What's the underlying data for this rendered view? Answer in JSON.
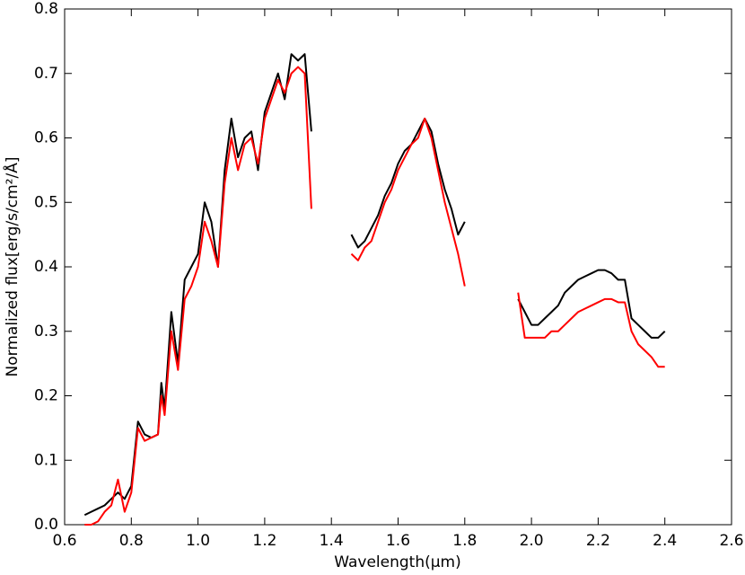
{
  "chart_data": {
    "type": "line",
    "x_label": "Wavelength(μm)",
    "y_label": "Normalized flux[erg/s/cm²/Å]",
    "x": [
      0.66,
      0.68,
      0.7,
      0.72,
      0.74,
      0.76,
      0.78,
      0.8,
      0.82,
      0.84,
      0.86,
      0.88,
      0.89,
      0.9,
      0.92,
      0.94,
      0.96,
      0.98,
      1.0,
      1.02,
      1.04,
      1.06,
      1.08,
      1.1,
      1.12,
      1.14,
      1.16,
      1.18,
      1.2,
      1.22,
      1.24,
      1.26,
      1.28,
      1.3,
      1.32,
      1.34,
      1.4,
      1.46,
      1.48,
      1.5,
      1.52,
      1.54,
      1.56,
      1.58,
      1.6,
      1.62,
      1.64,
      1.66,
      1.68,
      1.7,
      1.72,
      1.74,
      1.76,
      1.78,
      1.8,
      1.88,
      1.96,
      1.98,
      2.0,
      2.02,
      2.04,
      2.06,
      2.08,
      2.1,
      2.12,
      2.14,
      2.16,
      2.18,
      2.2,
      2.22,
      2.24,
      2.26,
      2.28,
      2.3,
      2.32,
      2.34,
      2.36,
      2.38,
      2.4
    ],
    "series": [
      {
        "color": "#000000",
        "values": [
          0.015,
          0.02,
          0.025,
          0.03,
          0.04,
          0.05,
          0.04,
          0.06,
          0.16,
          0.14,
          0.135,
          0.14,
          0.22,
          0.18,
          0.33,
          0.25,
          0.38,
          0.4,
          0.42,
          0.5,
          0.47,
          0.4,
          0.55,
          0.63,
          0.57,
          0.6,
          0.61,
          0.55,
          0.64,
          0.67,
          0.7,
          0.66,
          0.73,
          0.72,
          0.73,
          0.61,
          null,
          0.45,
          0.43,
          0.44,
          0.46,
          0.48,
          0.51,
          0.53,
          0.56,
          0.58,
          0.59,
          0.61,
          0.63,
          0.61,
          0.56,
          0.52,
          0.49,
          0.45,
          0.47,
          null,
          0.35,
          0.33,
          0.31,
          0.31,
          0.32,
          0.33,
          0.34,
          0.36,
          0.37,
          0.38,
          0.385,
          0.39,
          0.395,
          0.395,
          0.39,
          0.38,
          0.38,
          0.32,
          0.31,
          0.3,
          0.29,
          0.29,
          0.3
        ]
      },
      {
        "color": "#ff0000",
        "values": [
          0.0,
          0.0,
          0.005,
          0.02,
          0.03,
          0.07,
          0.02,
          0.05,
          0.15,
          0.13,
          0.135,
          0.14,
          0.2,
          0.17,
          0.3,
          0.24,
          0.35,
          0.37,
          0.4,
          0.47,
          0.44,
          0.4,
          0.53,
          0.6,
          0.55,
          0.59,
          0.6,
          0.56,
          0.63,
          0.66,
          0.69,
          0.67,
          0.7,
          0.71,
          0.7,
          0.49,
          null,
          0.42,
          0.41,
          0.43,
          0.44,
          0.47,
          0.5,
          0.52,
          0.55,
          0.57,
          0.59,
          0.6,
          0.63,
          0.6,
          0.55,
          0.5,
          0.46,
          0.42,
          0.37,
          null,
          0.36,
          0.29,
          0.29,
          0.29,
          0.29,
          0.3,
          0.3,
          0.31,
          0.32,
          0.33,
          0.335,
          0.34,
          0.345,
          0.35,
          0.35,
          0.345,
          0.345,
          0.3,
          0.28,
          0.27,
          0.26,
          0.245,
          0.245
        ]
      }
    ],
    "xlim": [
      0.6,
      2.6
    ],
    "xticks": [
      0.6,
      0.8,
      {
        "value": 1,
        "label": "1.0"
      },
      1.2,
      1.4,
      1.6,
      1.8,
      {
        "value": 2,
        "label": "2.0"
      },
      2.2,
      2.4,
      2.6
    ],
    "ylim": [
      0,
      0.8
    ],
    "yticks": [
      {
        "value": 0,
        "label": "0.0"
      },
      0.1,
      0.2,
      0.3,
      0.4,
      0.5,
      0.6,
      0.7,
      0.8
    ],
    "grid": false
  }
}
